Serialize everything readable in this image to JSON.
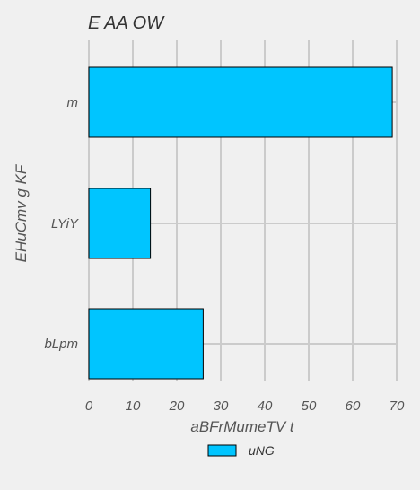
{
  "chart_data": {
    "type": "bar",
    "orientation": "horizontal",
    "title": "E AA OW",
    "xlabel": "aBFrMumeTV t",
    "ylabel": "EHuCmv g KF",
    "categories": [
      "m",
      "LYiY",
      "bLpm"
    ],
    "series": [
      {
        "name": "uNG",
        "values": [
          69,
          14,
          26
        ],
        "color": "#00c5ff"
      }
    ],
    "xlim": [
      0,
      70
    ],
    "xticks": [
      0,
      10,
      20,
      30,
      40,
      50,
      60,
      70
    ],
    "grid": true,
    "legend_position": "bottom-center"
  }
}
